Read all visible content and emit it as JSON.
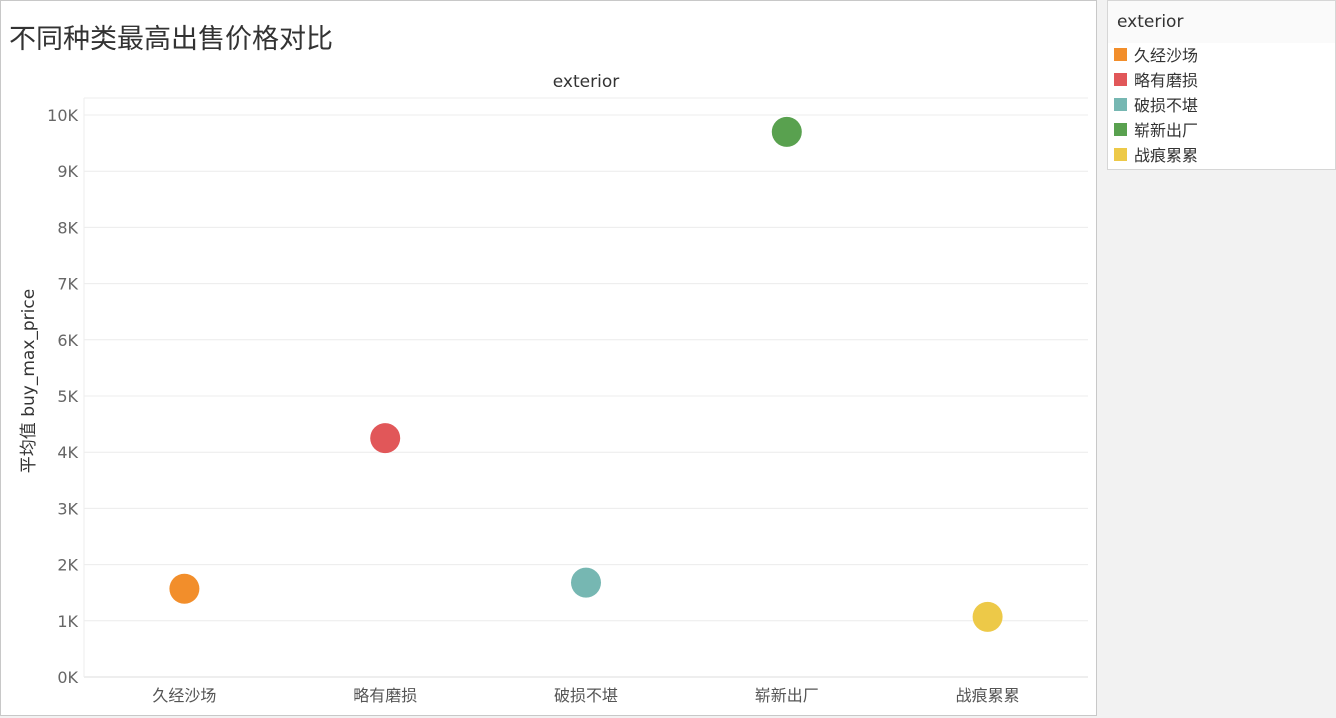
{
  "page": {
    "title": "不同种类最高出售价格对比"
  },
  "legend": {
    "title": "exterior",
    "items": [
      {
        "label": "久经沙场",
        "color": "#f28e2b"
      },
      {
        "label": "略有磨损",
        "color": "#e15759"
      },
      {
        "label": "破损不堪",
        "color": "#76b7b2"
      },
      {
        "label": "崭新出厂",
        "color": "#59a14f"
      },
      {
        "label": "战痕累累",
        "color": "#edc948"
      }
    ]
  },
  "chart_data": {
    "type": "scatter",
    "header": "exterior",
    "ylabel": "平均值 buy_max_price",
    "xlabel": "",
    "ylim": [
      0,
      10400
    ],
    "yticks": [
      {
        "value": 0,
        "label": "0K"
      },
      {
        "value": 1000,
        "label": "1K"
      },
      {
        "value": 2000,
        "label": "2K"
      },
      {
        "value": 3000,
        "label": "3K"
      },
      {
        "value": 4000,
        "label": "4K"
      },
      {
        "value": 5000,
        "label": "5K"
      },
      {
        "value": 6000,
        "label": "6K"
      },
      {
        "value": 7000,
        "label": "7K"
      },
      {
        "value": 8000,
        "label": "8K"
      },
      {
        "value": 9000,
        "label": "9K"
      },
      {
        "value": 10000,
        "label": "10K"
      }
    ],
    "grid": true,
    "categories": [
      "久经沙场",
      "略有磨损",
      "破损不堪",
      "崭新出厂",
      "战痕累累"
    ],
    "points": [
      {
        "category": "久经沙场",
        "value": 1570,
        "color": "#f28e2b"
      },
      {
        "category": "略有磨损",
        "value": 4250,
        "color": "#e15759"
      },
      {
        "category": "破损不堪",
        "value": 1680,
        "color": "#76b7b2"
      },
      {
        "category": "崭新出厂",
        "value": 9700,
        "color": "#59a14f"
      },
      {
        "category": "战痕累累",
        "value": 1070,
        "color": "#edc948"
      }
    ]
  }
}
